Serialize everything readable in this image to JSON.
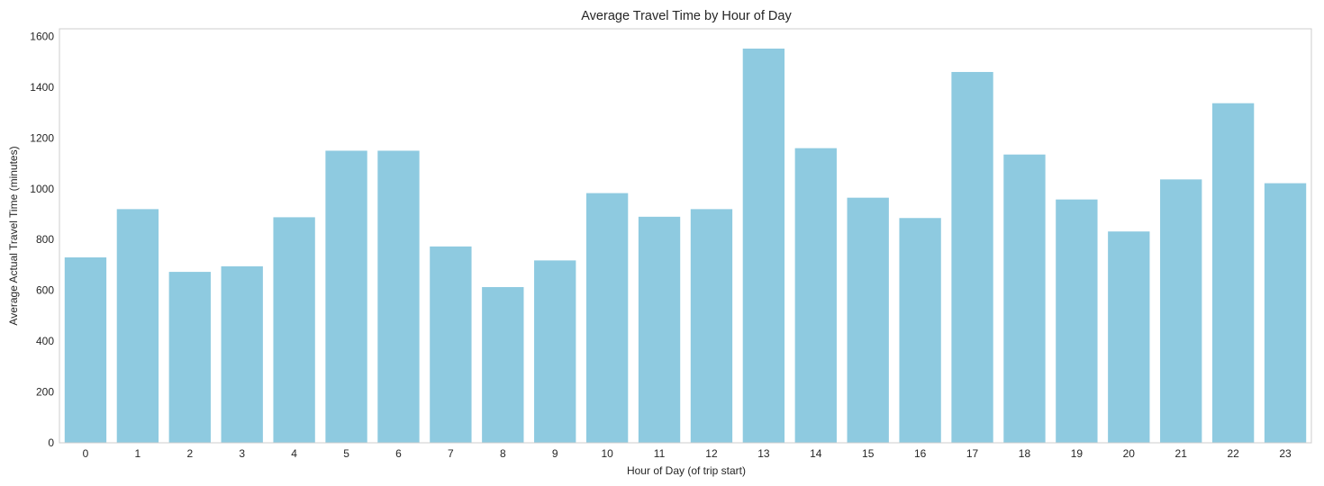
{
  "chart_data": {
    "type": "bar",
    "title": "Average Travel Time by Hour of Day",
    "xlabel": "Hour of Day (of trip start)",
    "ylabel": "Average Actual Travel Time (minutes)",
    "categories": [
      "0",
      "1",
      "2",
      "3",
      "4",
      "5",
      "6",
      "7",
      "8",
      "9",
      "10",
      "11",
      "12",
      "13",
      "14",
      "15",
      "16",
      "17",
      "18",
      "19",
      "20",
      "21",
      "22",
      "23"
    ],
    "values": [
      730,
      920,
      673,
      695,
      888,
      1150,
      1150,
      773,
      613,
      718,
      983,
      890,
      920,
      1552,
      1160,
      965,
      885,
      1460,
      1135,
      958,
      832,
      1037,
      1337,
      1022
    ],
    "yticks": [
      0,
      200,
      400,
      600,
      800,
      1000,
      1200,
      1400,
      1600
    ],
    "ylim": [
      0,
      1630
    ],
    "grid": false,
    "bar_color": "#8ecae0",
    "frame_color": "#cccccc"
  }
}
